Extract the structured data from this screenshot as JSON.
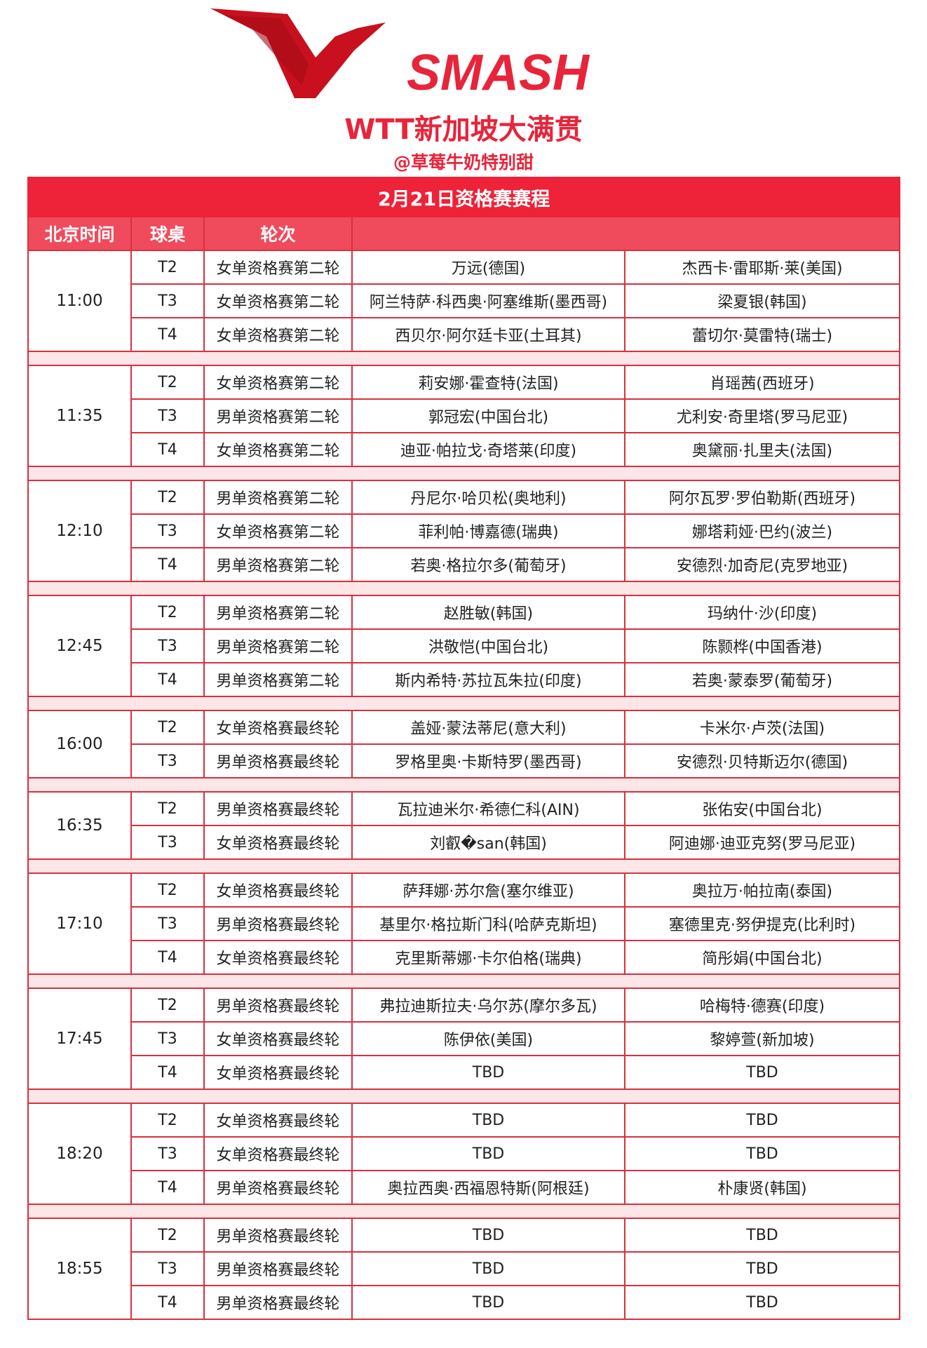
{
  "logo": {
    "text": "SMASH",
    "brand_color": "#e8243a"
  },
  "header": {
    "title": "WTT新加坡大满贯",
    "author": "@草莓牛奶特别甜"
  },
  "table": {
    "caption": "2月21日资格赛赛程",
    "columns": [
      "北京时间",
      "球桌",
      "轮次",
      ""
    ],
    "groups": [
      {
        "time": "11:00",
        "matches": [
          {
            "table": "T2",
            "round": "女单资格赛第二轮",
            "p1": "万远(德国)",
            "p2": "杰西卡·雷耶斯·莱(美国)"
          },
          {
            "table": "T3",
            "round": "女单资格赛第二轮",
            "p1": "阿兰特萨·科西奥·阿塞维斯(墨西哥)",
            "p2": "梁夏银(韩国)"
          },
          {
            "table": "T4",
            "round": "女单资格赛第二轮",
            "p1": "西贝尔·阿尔廷卡亚(土耳其)",
            "p2": "蕾切尔·莫雷特(瑞士)"
          }
        ]
      },
      {
        "time": "11:35",
        "matches": [
          {
            "table": "T2",
            "round": "女单资格赛第二轮",
            "p1": "莉安娜·霍查特(法国)",
            "p2": "肖瑶茜(西班牙)"
          },
          {
            "table": "T3",
            "round": "男单资格赛第二轮",
            "p1": "郭冠宏(中国台北)",
            "p2": "尤利安·奇里塔(罗马尼亚)"
          },
          {
            "table": "T4",
            "round": "女单资格赛第二轮",
            "p1": "迪亚·帕拉戈·奇塔莱(印度)",
            "p2": "奥黛丽·扎里夫(法国)"
          }
        ]
      },
      {
        "time": "12:10",
        "matches": [
          {
            "table": "T2",
            "round": "男单资格赛第二轮",
            "p1": "丹尼尔·哈贝松(奥地利)",
            "p2": "阿尔瓦罗·罗伯勒斯(西班牙)"
          },
          {
            "table": "T3",
            "round": "女单资格赛第二轮",
            "p1": "菲利帕·博嘉德(瑞典)",
            "p2": "娜塔莉娅·巴约(波兰)"
          },
          {
            "table": "T4",
            "round": "男单资格赛第二轮",
            "p1": "若奥·格拉尔多(葡萄牙)",
            "p2": "安德烈·加奇尼(克罗地亚)"
          }
        ]
      },
      {
        "time": "12:45",
        "matches": [
          {
            "table": "T2",
            "round": "男单资格赛第二轮",
            "p1": "赵胜敏(韩国)",
            "p2": "玛纳什·沙(印度)"
          },
          {
            "table": "T3",
            "round": "男单资格赛第二轮",
            "p1": "洪敬恺(中国台北)",
            "p2": "陈颢桦(中国香港)"
          },
          {
            "table": "T4",
            "round": "男单资格赛第二轮",
            "p1": "斯内希特·苏拉瓦朱拉(印度)",
            "p2": "若奥·蒙泰罗(葡萄牙)"
          }
        ]
      },
      {
        "time": "16:00",
        "matches": [
          {
            "table": "T2",
            "round": "女单资格赛最终轮",
            "p1": "盖娅·蒙法蒂尼(意大利)",
            "p2": "卡米尔·卢茨(法国)"
          },
          {
            "table": "T3",
            "round": "男单资格赛最终轮",
            "p1": "罗格里奥·卡斯特罗(墨西哥)",
            "p2": "安德烈·贝特斯迈尔(德国)"
          }
        ]
      },
      {
        "time": "16:35",
        "matches": [
          {
            "table": "T2",
            "round": "男单资格赛最终轮",
            "p1": "瓦拉迪米尔·希德仁科(AIN)",
            "p2": "张佑安(中国台北)"
          },
          {
            "table": "T3",
            "round": "女单资格赛最终轮",
            "p1": "刘叡�san(韩国)",
            "p2": "阿迪娜·迪亚克努(罗马尼亚)"
          }
        ]
      },
      {
        "time": "17:10",
        "matches": [
          {
            "table": "T2",
            "round": "女单资格赛最终轮",
            "p1": "萨拜娜·苏尔詹(塞尔维亚)",
            "p2": "奥拉万·帕拉南(泰国)"
          },
          {
            "table": "T3",
            "round": "男单资格赛最终轮",
            "p1": "基里尔·格拉斯门科(哈萨克斯坦)",
            "p2": "塞德里克·努伊提克(比利时)"
          },
          {
            "table": "T4",
            "round": "女单资格赛最终轮",
            "p1": "克里斯蒂娜·卡尔伯格(瑞典)",
            "p2": "简彤娟(中国台北)"
          }
        ]
      },
      {
        "time": "17:45",
        "matches": [
          {
            "table": "T2",
            "round": "男单资格赛最终轮",
            "p1": "弗拉迪斯拉夫·乌尔苏(摩尔多瓦)",
            "p2": "哈梅特·德赛(印度)"
          },
          {
            "table": "T3",
            "round": "女单资格赛最终轮",
            "p1": "陈伊依(美国)",
            "p2": "黎婷萱(新加坡)"
          },
          {
            "table": "T4",
            "round": "女单资格赛最终轮",
            "p1": "TBD",
            "p2": "TBD"
          }
        ]
      },
      {
        "time": "18:20",
        "matches": [
          {
            "table": "T2",
            "round": "女单资格赛最终轮",
            "p1": "TBD",
            "p2": "TBD"
          },
          {
            "table": "T3",
            "round": "女单资格赛最终轮",
            "p1": "TBD",
            "p2": "TBD"
          },
          {
            "table": "T4",
            "round": "男单资格赛最终轮",
            "p1": "奥拉西奥·西福恩特斯(阿根廷)",
            "p2": "朴康贤(韩国)"
          }
        ]
      },
      {
        "time": "18:55",
        "matches": [
          {
            "table": "T2",
            "round": "男单资格赛最终轮",
            "p1": "TBD",
            "p2": "TBD"
          },
          {
            "table": "T3",
            "round": "男单资格赛最终轮",
            "p1": "TBD",
            "p2": "TBD"
          },
          {
            "table": "T4",
            "round": "男单资格赛最终轮",
            "p1": "TBD",
            "p2": "TBD"
          }
        ]
      }
    ]
  }
}
